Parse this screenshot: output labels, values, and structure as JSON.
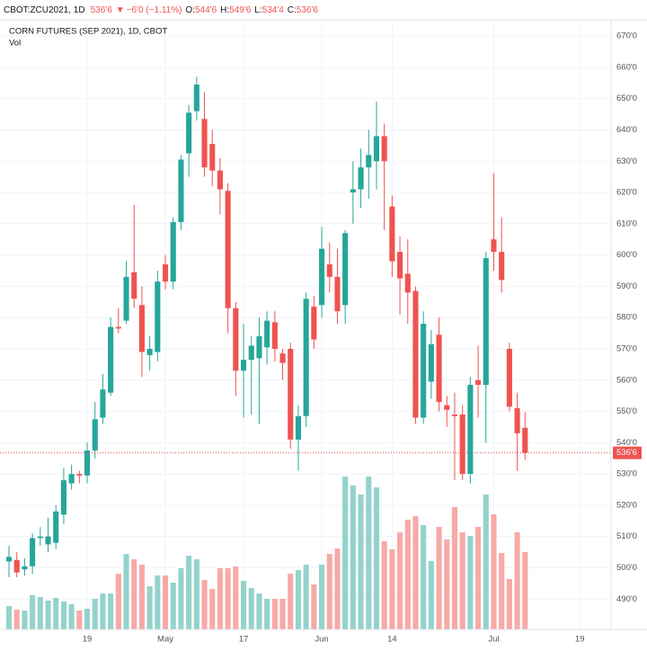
{
  "chart_data": {
    "type": "candlestick",
    "header": {
      "symbol": "CBOT:ZCU2021, 1D",
      "last": "536'6",
      "arrow": "▼",
      "change": "−6'0 (−1.11%)",
      "o_label": "O:",
      "open": "544'6",
      "h_label": "H:",
      "high": "549'6",
      "l_label": "L:",
      "low": "534'4",
      "c_label": "C:",
      "close": "536'6"
    },
    "title": "CORN FUTURES (SEP 2021), 1D, CBOT",
    "volume_label": "Vol",
    "up_color": "#26a69a",
    "down_color": "#ef5350",
    "volume_up_color": "#93d3cc",
    "volume_down_color": "#f7a9a7",
    "grid": true,
    "xlim": [
      -1.15,
      77
    ],
    "xticks": [
      {
        "value": 10,
        "label": "19"
      },
      {
        "value": 20,
        "label": "May"
      },
      {
        "value": 30,
        "label": "17"
      },
      {
        "value": 40,
        "label": "Jun"
      },
      {
        "value": 49,
        "label": "14"
      },
      {
        "value": 62,
        "label": "Jul"
      },
      {
        "value": 73,
        "label": "19"
      }
    ],
    "ylim": [
      480.3,
      675.2
    ],
    "yticks": [
      {
        "value": 490,
        "label": "490'0"
      },
      {
        "value": 500,
        "label": "500'0"
      },
      {
        "value": 510,
        "label": "510'0"
      },
      {
        "value": 520,
        "label": "520'0"
      },
      {
        "value": 530,
        "label": "530'0"
      },
      {
        "value": 540,
        "label": "540'0"
      },
      {
        "value": 550,
        "label": "550'0"
      },
      {
        "value": 560,
        "label": "560'0"
      },
      {
        "value": 570,
        "label": "570'0"
      },
      {
        "value": 580,
        "label": "580'0"
      },
      {
        "value": 590,
        "label": "590'0"
      },
      {
        "value": 600,
        "label": "600'0"
      },
      {
        "value": 610,
        "label": "610'0"
      },
      {
        "value": 620,
        "label": "620'0"
      },
      {
        "value": 630,
        "label": "630'0"
      },
      {
        "value": 640,
        "label": "640'0"
      },
      {
        "value": 650,
        "label": "650'0"
      },
      {
        "value": 660,
        "label": "660'0"
      },
      {
        "value": 670,
        "label": "670'0"
      }
    ],
    "last_price": {
      "value": 536.75,
      "label": "536'6"
    },
    "open": [
      502,
      502.5,
      499.5,
      500.5,
      509.5,
      507.5,
      508,
      517,
      527,
      530,
      529.5,
      537.5,
      548,
      556,
      577,
      579,
      594.5,
      584,
      568,
      569,
      597,
      591.5,
      610.5,
      632.5,
      646,
      643.5,
      635.5,
      627,
      620.5,
      583,
      563,
      566.5,
      567,
      570.5,
      578.5,
      568.5,
      570,
      541,
      548.5,
      583.5,
      584,
      597,
      593,
      584,
      620,
      621,
      628,
      630,
      638,
      615.5,
      601,
      594,
      588.5,
      548,
      559.5,
      574.5,
      552,
      549,
      549,
      530,
      560,
      558.5,
      605,
      601,
      570,
      551,
      544.75
    ],
    "high": [
      507,
      505,
      503,
      511,
      513,
      516,
      520,
      532,
      533,
      531,
      540,
      553,
      562,
      580,
      583,
      598,
      616,
      590,
      574,
      595,
      600,
      612,
      632,
      648,
      657,
      652,
      640,
      631,
      623,
      585,
      578,
      574,
      580,
      582,
      582,
      570,
      572,
      552,
      588,
      587,
      609,
      604,
      602,
      608,
      630,
      634,
      640,
      649,
      642,
      619,
      606,
      605,
      590,
      582,
      576,
      580,
      555,
      556,
      552,
      561,
      571,
      601,
      626,
      612,
      572,
      556,
      549.75
    ],
    "low": [
      497,
      497,
      497.5,
      498,
      507,
      505,
      506,
      514,
      525,
      527,
      527,
      535,
      546,
      555,
      575,
      578,
      583,
      561,
      563,
      566,
      589,
      589,
      608,
      625,
      643,
      625,
      622,
      613,
      575,
      555,
      548,
      549,
      546,
      565,
      566,
      560,
      538,
      531,
      545,
      570,
      580,
      588,
      578,
      578,
      610,
      615,
      618,
      621,
      608,
      593,
      581,
      578,
      546,
      546,
      554,
      550,
      545,
      528,
      528,
      527,
      548,
      540,
      595,
      588,
      550,
      531,
      534.5
    ],
    "close": [
      503.5,
      498.5,
      500.5,
      509.5,
      510,
      510,
      518,
      528,
      530,
      529.5,
      537.5,
      547.5,
      557,
      577,
      576.5,
      593,
      586,
      569,
      570,
      591.5,
      591.5,
      610.5,
      630.5,
      645.5,
      654.5,
      628,
      627,
      621,
      583,
      563,
      566.5,
      571,
      574,
      579,
      570,
      565.5,
      541,
      548.5,
      586,
      573,
      602,
      593,
      582,
      607,
      621,
      628,
      632,
      638,
      630,
      598,
      592.5,
      588,
      548,
      578,
      571.5,
      553,
      550.5,
      548.5,
      530,
      558.5,
      558.5,
      599,
      601,
      592,
      551.5,
      543,
      536.75
    ],
    "volume": [
      26,
      22,
      21,
      38,
      36,
      32,
      35,
      31,
      28,
      21,
      23,
      34,
      40,
      40,
      62,
      84,
      78,
      72,
      48,
      60,
      60,
      52,
      68,
      82,
      78,
      55,
      45,
      68,
      68,
      70,
      54,
      46,
      40,
      34,
      34,
      34,
      62,
      66,
      72,
      50,
      72,
      84,
      90,
      170,
      160,
      150,
      170,
      158,
      98,
      89,
      108,
      122,
      126,
      116,
      76,
      114,
      100,
      136,
      108,
      104,
      114,
      150,
      128,
      85,
      56,
      108,
      86
    ],
    "volume_lim": [
      0,
      200
    ]
  }
}
